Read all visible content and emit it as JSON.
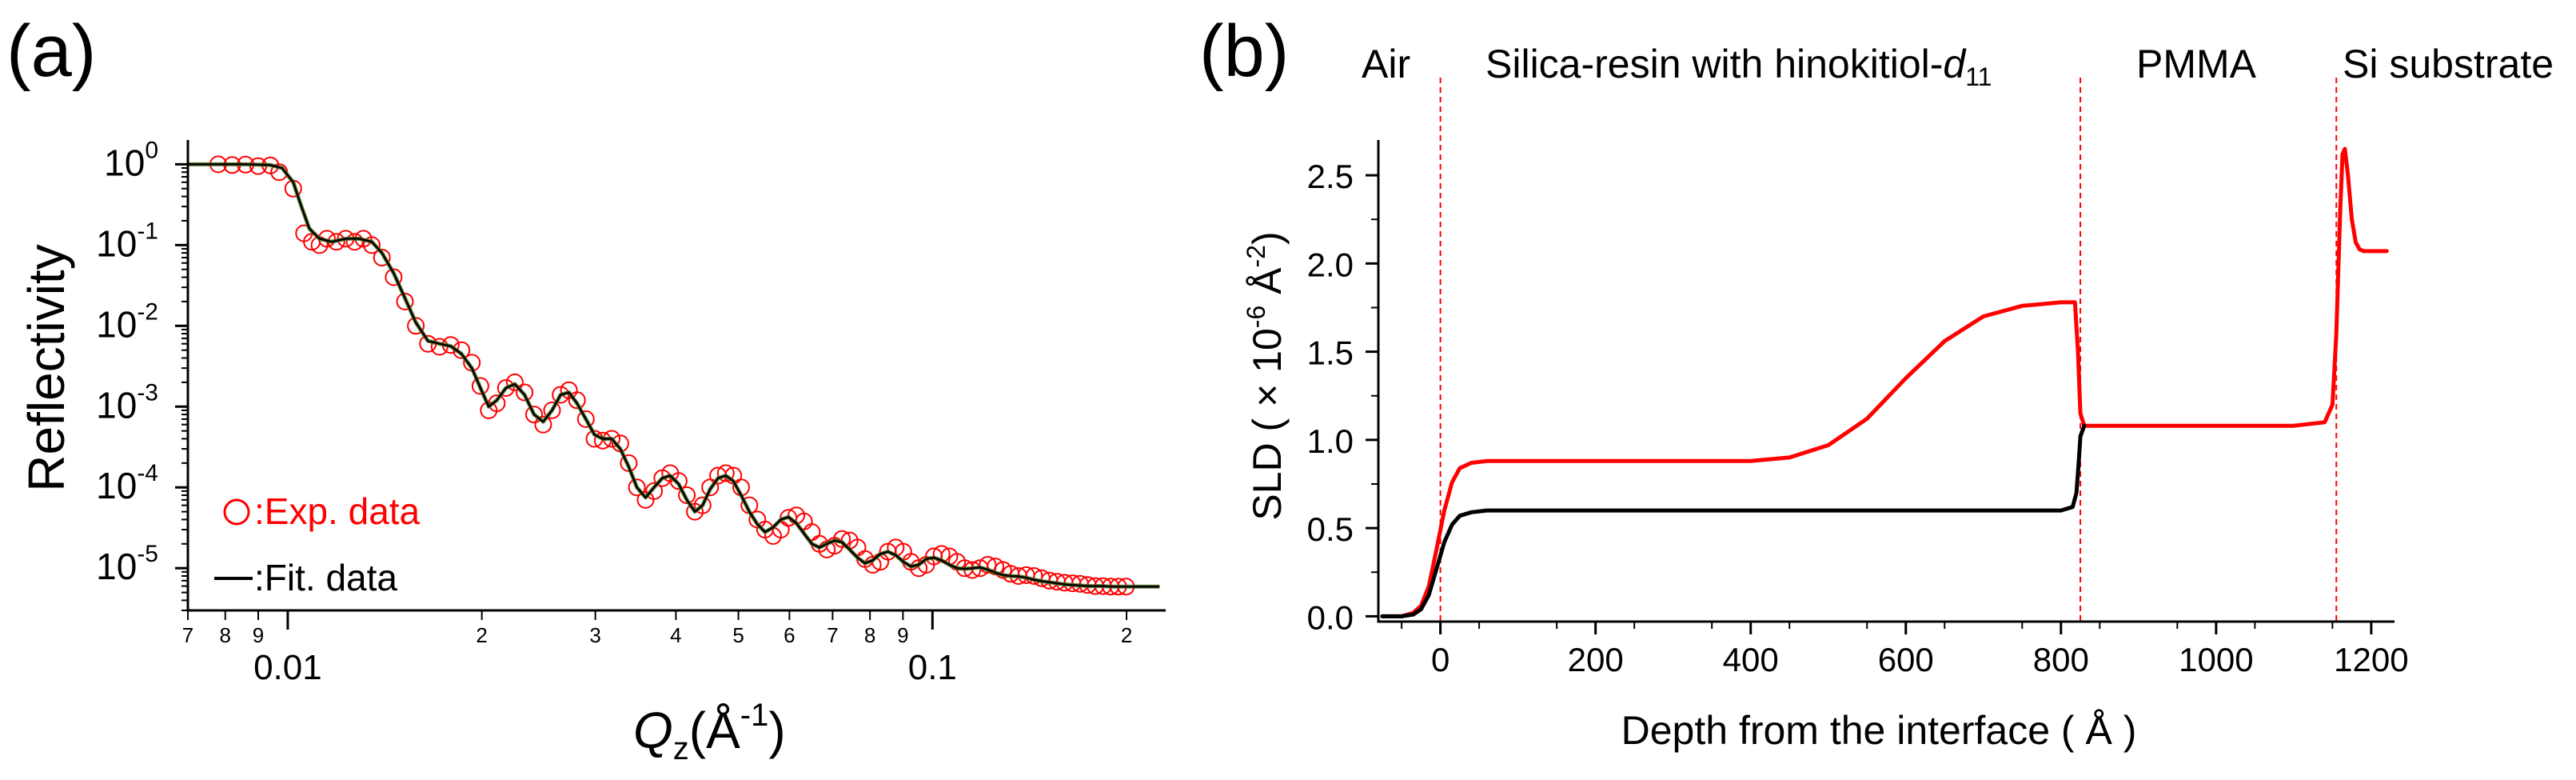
{
  "colors": {
    "exp": "#ff0000",
    "fit": "#000000",
    "fit_line": "#4a6e1a",
    "divider": "#ff0000",
    "axis": "#000000"
  },
  "panel_a": {
    "label": "(a)",
    "ylabel": "Reflectivity",
    "xlabel_q": "Q",
    "xlabel_sub": "z",
    "xlabel_unit": "(Å",
    "xlabel_exp": "-1",
    "xlabel_close": ")",
    "y_ticks": [
      {
        "base": "10",
        "exp": "0"
      },
      {
        "base": "10",
        "exp": "-1"
      },
      {
        "base": "10",
        "exp": "-2"
      },
      {
        "base": "10",
        "exp": "-3"
      },
      {
        "base": "10",
        "exp": "-4"
      },
      {
        "base": "10",
        "exp": "-5"
      }
    ],
    "x_minor_labels": [
      "7",
      "8",
      "9",
      "2",
      "3",
      "4",
      "5",
      "6",
      "7",
      "8",
      "9",
      "2"
    ],
    "x_major_labels": [
      "0.01",
      "0.1"
    ],
    "legend": {
      "exp_label": ":Exp. data",
      "fit_label": ":Fit. data"
    }
  },
  "panel_b": {
    "label": "(b)",
    "ylabel_main": "SLD ( × 10",
    "ylabel_exp1": "-6",
    "ylabel_unit": " Å",
    "ylabel_exp2": "-2",
    "ylabel_close": ")",
    "xlabel": "Depth from the interface ( Å )",
    "x_ticks": [
      "0",
      "200",
      "400",
      "600",
      "800",
      "1000",
      "1200"
    ],
    "y_ticks": [
      "0.0",
      "0.5",
      "1.0",
      "1.5",
      "2.0",
      "2.5"
    ],
    "regions": {
      "air": "Air",
      "silica_main": "Silica-resin with hinokitiol-",
      "silica_d": "d",
      "silica_sub": "11",
      "pmma": "PMMA",
      "si": "Si substrate"
    }
  },
  "chart_data": [
    {
      "type": "scatter",
      "title": "(a)",
      "xlabel": "Qz (Å-1)",
      "ylabel": "Reflectivity",
      "xscale": "log",
      "yscale": "log",
      "xlim": [
        0.007,
        0.23
      ],
      "ylim": [
        3e-06,
        2.0
      ],
      "series": [
        {
          "name": "Exp. data",
          "marker": "open-circle",
          "x": [
            0.0078,
            0.0082,
            0.0086,
            0.009,
            0.0094,
            0.0097,
            0.0102,
            0.0106,
            0.0109,
            0.0112,
            0.0115,
            0.0119,
            0.0123,
            0.0127,
            0.0131,
            0.0135,
            0.014,
            0.0146,
            0.0152,
            0.0158,
            0.0165,
            0.0172,
            0.0179,
            0.0186,
            0.0193,
            0.0199,
            0.0205,
            0.0211,
            0.0218,
            0.0225,
            0.0233,
            0.0241,
            0.0249,
            0.0257,
            0.0265,
            0.0273,
            0.0281,
            0.029,
            0.0299,
            0.0308,
            0.0318,
            0.0328,
            0.0338,
            0.0348,
            0.0359,
            0.037,
            0.0381,
            0.0392,
            0.0404,
            0.0416,
            0.0428,
            0.044,
            0.0452,
            0.0465,
            0.0478,
            0.0491,
            0.0505,
            0.052,
            0.0535,
            0.055,
            0.0566,
            0.0582,
            0.0598,
            0.0615,
            0.0632,
            0.065,
            0.0668,
            0.0686,
            0.0705,
            0.0724,
            0.0744,
            0.0765,
            0.0786,
            0.0808,
            0.083,
            0.0853,
            0.0877,
            0.0901,
            0.0926,
            0.0952,
            0.0978,
            0.1005,
            0.1033,
            0.1062,
            0.1092,
            0.1122,
            0.1153,
            0.1185,
            0.1218,
            0.1252,
            0.1287,
            0.1323,
            0.136,
            0.1398,
            0.1437,
            0.1477,
            0.1518,
            0.156,
            0.1603,
            0.1648,
            0.1694,
            0.1741,
            0.1789,
            0.1839,
            0.189,
            0.1942,
            0.1996
          ],
          "y": [
            1.0,
            0.98,
            0.99,
            0.95,
            0.97,
            0.8,
            0.5,
            0.14,
            0.11,
            0.1,
            0.12,
            0.11,
            0.12,
            0.11,
            0.12,
            0.1,
            0.07,
            0.04,
            0.02,
            0.01,
            0.006,
            0.0055,
            0.0058,
            0.005,
            0.0035,
            0.0018,
            0.0009,
            0.0011,
            0.0017,
            0.002,
            0.0015,
            0.0008,
            0.0006,
            0.0009,
            0.0014,
            0.0016,
            0.0012,
            0.0007,
            0.0004,
            0.00038,
            0.0004,
            0.00035,
            0.0002,
            0.0001,
            7e-05,
            9e-05,
            0.00013,
            0.00015,
            0.00012,
            8e-05,
            5e-05,
            6e-05,
            0.0001,
            0.00014,
            0.00015,
            0.00014,
            0.0001,
            6e-05,
            4e-05,
            3e-05,
            2.5e-05,
            3e-05,
            4.2e-05,
            4.5e-05,
            3.8e-05,
            2.8e-05,
            2e-05,
            1.7e-05,
            1.9e-05,
            2.3e-05,
            2.2e-05,
            1.8e-05,
            1.3e-05,
            1.1e-05,
            1.2e-05,
            1.6e-05,
            1.8e-05,
            1.6e-05,
            1.2e-05,
            1e-05,
            1.1e-05,
            1.4e-05,
            1.5e-05,
            1.4e-05,
            1.2e-05,
            1e-05,
            9.5e-06,
            1e-05,
            1.1e-05,
            1.05e-05,
            9.5e-06,
            8.5e-06,
            8e-06,
            8.2e-06,
            8e-06,
            7.5e-06,
            7e-06,
            6.8e-06,
            6.6e-06,
            6.5e-06,
            6.4e-06,
            6.2e-06,
            6e-06,
            6e-06,
            5.9e-06,
            5.9e-06,
            5.9e-06
          ]
        },
        {
          "name": "Fit. data",
          "marker": "line",
          "x": [
            0.007,
            0.0078,
            0.0086,
            0.0094,
            0.0098,
            0.0102,
            0.0105,
            0.0108,
            0.0112,
            0.0117,
            0.0123,
            0.0129,
            0.0135,
            0.014,
            0.0146,
            0.0152,
            0.0158,
            0.0165,
            0.0172,
            0.0179,
            0.0186,
            0.0193,
            0.0199,
            0.0205,
            0.0211,
            0.0218,
            0.0225,
            0.0233,
            0.0241,
            0.0249,
            0.0257,
            0.0265,
            0.0273,
            0.0281,
            0.029,
            0.0299,
            0.0308,
            0.0318,
            0.0328,
            0.0338,
            0.0348,
            0.0359,
            0.037,
            0.0381,
            0.0392,
            0.0404,
            0.0416,
            0.0428,
            0.044,
            0.0452,
            0.0465,
            0.0478,
            0.0491,
            0.0505,
            0.052,
            0.0535,
            0.055,
            0.0566,
            0.0582,
            0.0598,
            0.0615,
            0.0632,
            0.065,
            0.0668,
            0.0686,
            0.0705,
            0.0724,
            0.0744,
            0.0765,
            0.0786,
            0.0808,
            0.083,
            0.0853,
            0.0877,
            0.0901,
            0.0926,
            0.0952,
            0.0978,
            0.1005,
            0.1033,
            0.1062,
            0.1092,
            0.1122,
            0.1153,
            0.1185,
            0.1218,
            0.1252,
            0.1287,
            0.1323,
            0.136,
            0.1398,
            0.1437,
            0.1477,
            0.1518,
            0.156,
            0.1603,
            0.1648,
            0.1694,
            0.1741,
            0.1789,
            0.1839,
            0.189,
            0.1942,
            0.1996,
            0.205,
            0.215,
            0.225
          ],
          "y": [
            1.0,
            1.0,
            1.0,
            0.98,
            0.9,
            0.6,
            0.3,
            0.16,
            0.12,
            0.11,
            0.12,
            0.12,
            0.11,
            0.08,
            0.045,
            0.022,
            0.011,
            0.0065,
            0.006,
            0.0056,
            0.0045,
            0.003,
            0.0017,
            0.001,
            0.0012,
            0.0017,
            0.0019,
            0.0014,
            0.0008,
            0.00065,
            0.0009,
            0.0014,
            0.0015,
            0.0011,
            0.0007,
            0.00045,
            0.0004,
            0.0004,
            0.0003,
            0.00018,
            0.0001,
            7.5e-05,
            0.0001,
            0.00013,
            0.00014,
            0.00011,
            7e-05,
            5e-05,
            6e-05,
            9.5e-05,
            0.00013,
            0.00014,
            0.00012,
            8e-05,
            5e-05,
            3.5e-05,
            2.8e-05,
            3.2e-05,
            4e-05,
            4.3e-05,
            3.6e-05,
            2.7e-05,
            2e-05,
            1.8e-05,
            2e-05,
            2.2e-05,
            2.1e-05,
            1.7e-05,
            1.35e-05,
            1.15e-05,
            1.25e-05,
            1.5e-05,
            1.6e-05,
            1.45e-05,
            1.2e-05,
            1.05e-05,
            1.1e-05,
            1.3e-05,
            1.35e-05,
            1.25e-05,
            1.1e-05,
            1e-05,
            9.8e-06,
            1e-05,
            1.02e-05,
            9.6e-06,
            8.8e-06,
            8.2e-06,
            8e-06,
            7.9e-06,
            7.6e-06,
            7.2e-06,
            6.9e-06,
            6.7e-06,
            6.5e-06,
            6.3e-06,
            6.2e-06,
            6.1e-06,
            6e-06,
            6e-06,
            6e-06,
            5.9e-06,
            5.9e-06,
            5.9e-06,
            5.9e-06,
            5.9e-06,
            5.9e-06
          ]
        }
      ]
    },
    {
      "type": "line",
      "title": "(b)",
      "xlabel": "Depth from the interface ( Å )",
      "ylabel": "SLD ( × 10-6 Å-2)",
      "xlim": [
        -80,
        1230
      ],
      "ylim": [
        -0.03,
        2.7
      ],
      "region_dividers": [
        0,
        825,
        1155
      ],
      "region_labels": [
        "Air",
        "Silica-resin with hinokitiol-d11",
        "PMMA",
        "Si substrate"
      ],
      "series": [
        {
          "name": "red",
          "color": "#ff0000",
          "x": [
            -75,
            -50,
            -35,
            -25,
            -15,
            -5,
            5,
            15,
            25,
            40,
            60,
            100,
            200,
            300,
            400,
            450,
            500,
            550,
            600,
            650,
            700,
            750,
            800,
            818,
            822,
            825,
            830,
            850,
            900,
            1000,
            1100,
            1140,
            1150,
            1155,
            1160,
            1163,
            1166,
            1170,
            1175,
            1180,
            1185,
            1190,
            1195,
            1200,
            1210,
            1220
          ],
          "y": [
            0.0,
            0.0,
            0.02,
            0.06,
            0.17,
            0.38,
            0.6,
            0.76,
            0.84,
            0.87,
            0.88,
            0.88,
            0.88,
            0.88,
            0.88,
            0.9,
            0.97,
            1.12,
            1.35,
            1.56,
            1.7,
            1.76,
            1.78,
            1.78,
            1.5,
            1.15,
            1.08,
            1.08,
            1.08,
            1.08,
            1.08,
            1.1,
            1.2,
            1.6,
            2.3,
            2.62,
            2.65,
            2.5,
            2.25,
            2.12,
            2.08,
            2.07,
            2.07,
            2.07,
            2.07,
            2.07
          ]
        },
        {
          "name": "black",
          "color": "#000000",
          "x": [
            -75,
            -50,
            -35,
            -25,
            -15,
            -5,
            5,
            15,
            25,
            40,
            60,
            100,
            200,
            400,
            600,
            800,
            815,
            820,
            823,
            825,
            830
          ],
          "y": [
            0.0,
            0.0,
            0.01,
            0.04,
            0.12,
            0.27,
            0.42,
            0.52,
            0.57,
            0.59,
            0.6,
            0.6,
            0.6,
            0.6,
            0.6,
            0.6,
            0.62,
            0.7,
            0.88,
            1.02,
            1.08
          ]
        }
      ]
    }
  ]
}
